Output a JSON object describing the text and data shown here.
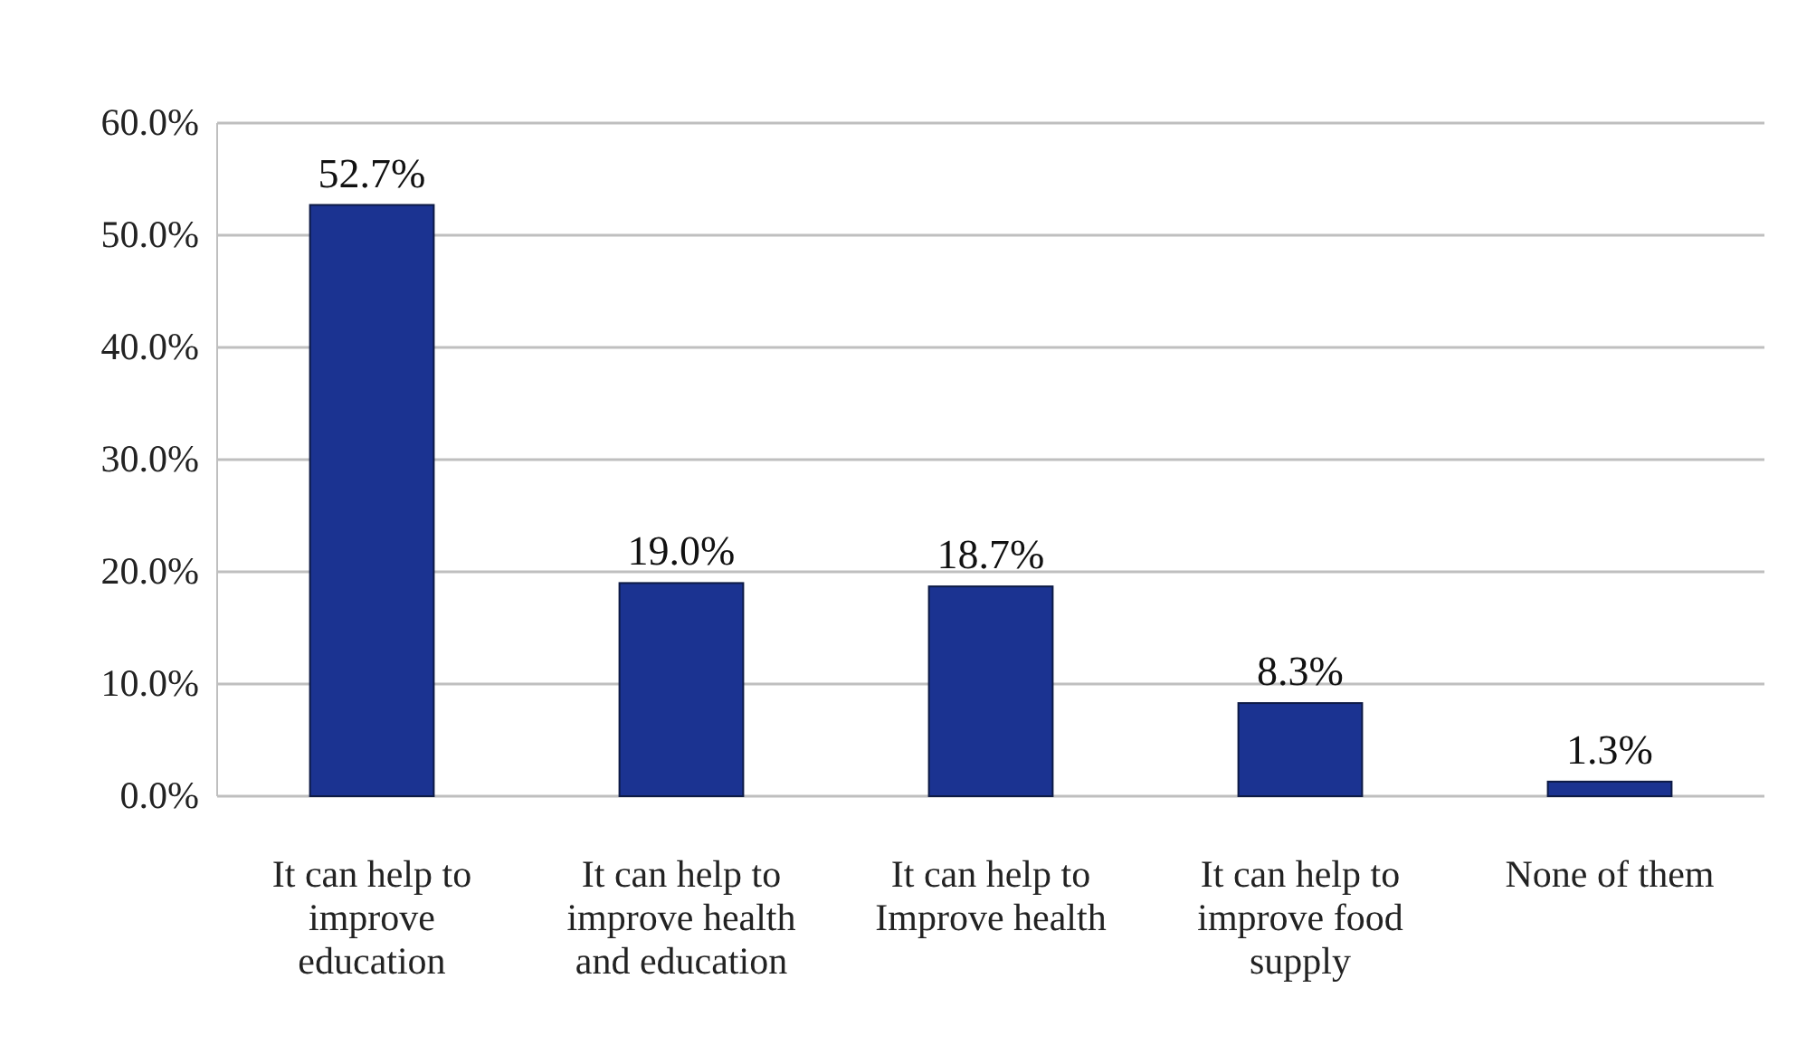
{
  "chart_data": {
    "type": "bar",
    "categories": [
      "It can help to improve education",
      "It can help to improve health and education",
      "It can help to Improve health",
      "It can help to improve food supply",
      "None of them"
    ],
    "values": [
      52.7,
      19.0,
      18.7,
      8.3,
      1.3
    ],
    "value_labels": [
      "52.7%",
      "19.0%",
      "18.7%",
      "8.3%",
      "1.3%"
    ],
    "color": "#1b3391",
    "ylim": [
      0,
      60
    ],
    "yticks": [
      {
        "value": 0,
        "label": "0.0%"
      },
      {
        "value": 10,
        "label": "10.0%"
      },
      {
        "value": 20,
        "label": "20.0%"
      },
      {
        "value": 30,
        "label": "30.0%"
      },
      {
        "value": 40,
        "label": "40.0%"
      },
      {
        "value": 50,
        "label": "50.0%"
      },
      {
        "value": 60,
        "label": "60.0%"
      }
    ],
    "grid": "y"
  }
}
